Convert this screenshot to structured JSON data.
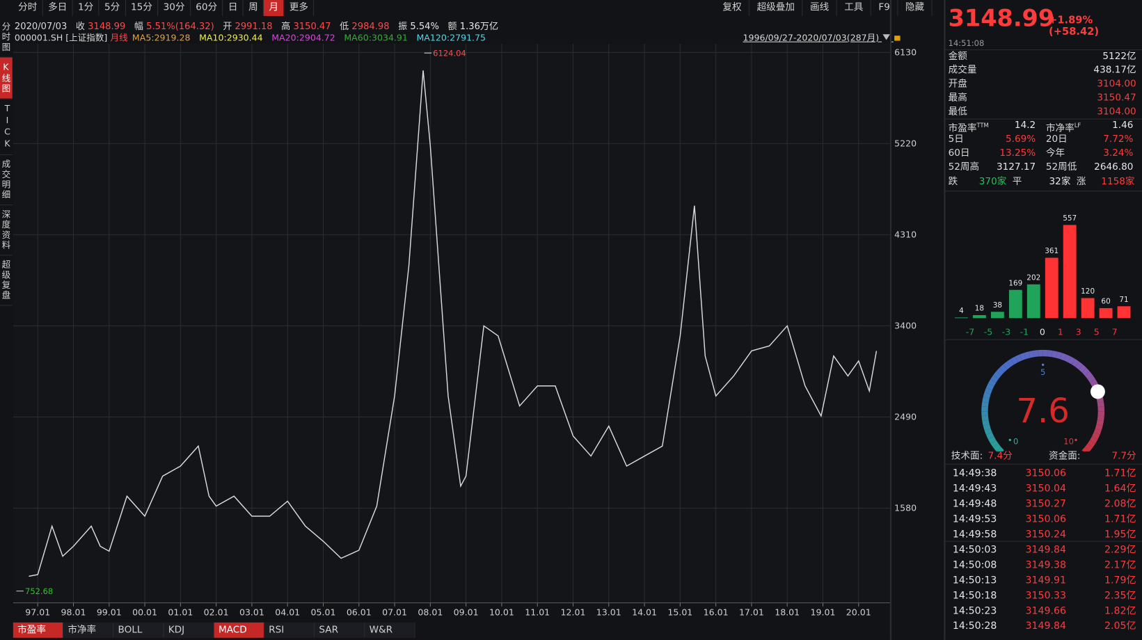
{
  "toolbar": {
    "periods": [
      "分时",
      "多日",
      "1分",
      "5分",
      "15分",
      "30分",
      "60分",
      "日",
      "周",
      "月",
      "更多"
    ],
    "active_index": 9,
    "tools": [
      "复权",
      "超级叠加",
      "画线",
      "工具",
      "F9",
      "隐藏"
    ]
  },
  "side_tabs": [
    "分时图",
    "K线图",
    "TICK",
    "成交明细",
    "深度资料",
    "超级复盘"
  ],
  "side_active": 1,
  "quote_bar": {
    "date": "2020/07/03",
    "items": [
      {
        "label": "收",
        "value": "3148.99",
        "color": "#ff4a4a"
      },
      {
        "label": "幅",
        "value": "5.51%(164.32)",
        "color": "#ff4a4a"
      },
      {
        "label": "开",
        "value": "2991.18",
        "color": "#ff4a4a"
      },
      {
        "label": "高",
        "value": "3150.47",
        "color": "#ff4a4a"
      },
      {
        "label": "低",
        "value": "2984.98",
        "color": "#ff4a4a"
      },
      {
        "label": "振",
        "value": "5.54%",
        "color": "#e6e6e6"
      },
      {
        "label": "额",
        "value": "1.36万亿",
        "color": "#e6e6e6"
      }
    ]
  },
  "legend_bar": {
    "code": "000001.SH [上证指数]",
    "period": "月线",
    "mas": [
      {
        "text": "MA5:2919.28",
        "color": "#e6a23c"
      },
      {
        "text": "MA10:2930.44",
        "color": "#f0f040"
      },
      {
        "text": "MA20:2904.72",
        "color": "#e040e0"
      },
      {
        "text": "MA60:3034.91",
        "color": "#30b030"
      },
      {
        "text": "MA120:2791.75",
        "color": "#50d8e8"
      }
    ],
    "range": "1996/09/27-2020/07/03(287月)"
  },
  "chart_data": [
    {
      "type": "line",
      "color": "#d9d9d9",
      "xlim": [
        1996.31,
        2020.88
      ],
      "ylim": [
        635,
        6217
      ],
      "grid": true,
      "xticks": [
        {
          "value": 1997,
          "label": "97.01"
        },
        {
          "value": 1998,
          "label": "98.01"
        },
        {
          "value": 1999,
          "label": "99.01"
        },
        {
          "value": 2000,
          "label": "00.01"
        },
        {
          "value": 2001,
          "label": "01.01"
        },
        {
          "value": 2002,
          "label": "02.01"
        },
        {
          "value": 2003,
          "label": "03.01"
        },
        {
          "value": 2004,
          "label": "04.01"
        },
        {
          "value": 2005,
          "label": "05.01"
        },
        {
          "value": 2006,
          "label": "06.01"
        },
        {
          "value": 2007,
          "label": "07.01"
        },
        {
          "value": 2008,
          "label": "08.01"
        },
        {
          "value": 2009,
          "label": "09.01"
        },
        {
          "value": 2010,
          "label": "10.01"
        },
        {
          "value": 2011,
          "label": "11.01"
        },
        {
          "value": 2012,
          "label": "12.01"
        },
        {
          "value": 2013,
          "label": "13.01"
        },
        {
          "value": 2014,
          "label": "14.01"
        },
        {
          "value": 2015,
          "label": "15.01"
        },
        {
          "value": 2016,
          "label": "16.01"
        },
        {
          "value": 2017,
          "label": "17.01"
        },
        {
          "value": 2018,
          "label": "18.01"
        },
        {
          "value": 2019,
          "label": "19.01"
        },
        {
          "value": 2020,
          "label": "20.01"
        }
      ],
      "yticks": [
        1580,
        2490,
        3400,
        4310,
        5220,
        6130
      ],
      "x": [
        1996.75,
        1997.0,
        1997.4,
        1997.7,
        1998.0,
        1998.5,
        1998.75,
        1999.0,
        1999.5,
        2000.0,
        2000.5,
        2001.0,
        2001.5,
        2001.8,
        2002.0,
        2002.5,
        2003.0,
        2003.5,
        2004.0,
        2004.5,
        2005.0,
        2005.5,
        2006.0,
        2006.5,
        2007.0,
        2007.4,
        2007.8,
        2008.0,
        2008.5,
        2008.85,
        2009.0,
        2009.5,
        2009.9,
        2010.5,
        2011.0,
        2011.5,
        2012.0,
        2012.5,
        2013.0,
        2013.5,
        2014.0,
        2014.5,
        2015.0,
        2015.4,
        2015.7,
        2016.0,
        2016.5,
        2017.0,
        2017.5,
        2018.0,
        2018.5,
        2018.95,
        2019.3,
        2019.7,
        2020.0,
        2020.3,
        2020.5
      ],
      "values": [
        900,
        917,
        1400,
        1100,
        1200,
        1400,
        1200,
        1150,
        1700,
        1500,
        1900,
        2000,
        2200,
        1700,
        1600,
        1700,
        1500,
        1500,
        1650,
        1400,
        1250,
        1080,
        1160,
        1600,
        2700,
        4000,
        5950,
        5200,
        2700,
        1800,
        1900,
        3400,
        3300,
        2600,
        2800,
        2800,
        2300,
        2100,
        2400,
        2000,
        2100,
        2200,
        3300,
        4600,
        3100,
        2700,
        2900,
        3150,
        3200,
        3400,
        2800,
        2500,
        3100,
        2900,
        3050,
        2750,
        3149
      ],
      "annotations": [
        {
          "x": 2007.83,
          "y": 6124.04,
          "label": "6124.04",
          "color": "#ff4a4a"
        },
        {
          "x": 1996.4,
          "y": 752.68,
          "label": "752.68",
          "color": "#30c030"
        }
      ]
    },
    {
      "type": "bar",
      "values": [
        4,
        18,
        38,
        169,
        202,
        361,
        557,
        120,
        60,
        71
      ],
      "colors": [
        "#22a35a",
        "#22a35a",
        "#22a35a",
        "#22a35a",
        "#22a35a",
        "#ff3333",
        "#ff3333",
        "#ff3333",
        "#ff3333",
        "#ff3333"
      ],
      "axis_labels": [
        {
          "text": "-7",
          "color": "#22a35a"
        },
        {
          "text": "-5",
          "color": "#22a35a"
        },
        {
          "text": "-3",
          "color": "#22a35a"
        },
        {
          "text": "-1",
          "color": "#22a35a"
        },
        {
          "text": "0",
          "color": "#e6e6e6"
        },
        {
          "text": "1",
          "color": "#ff3333"
        },
        {
          "text": "3",
          "color": "#ff3333"
        },
        {
          "text": "5",
          "color": "#ff3333"
        },
        {
          "text": "7",
          "color": "#ff3333"
        }
      ]
    }
  ],
  "indicator_tabs": [
    "市盈率",
    "市净率",
    "BOLL",
    "KDJ",
    "MACD",
    "RSI",
    "SAR",
    "W&R"
  ],
  "indicator_active": [
    0,
    4
  ],
  "panel": {
    "price": "3148.99",
    "change": "+1.89% (+58.42)",
    "time": "14:51:08",
    "stats": [
      {
        "label": "金额",
        "value": "5122亿",
        "color": "#e6e6e6"
      },
      {
        "label": "成交量",
        "value": "438.17亿",
        "color": "#e6e6e6"
      },
      {
        "label": "开盘",
        "value": "3104.00",
        "color": "#ff3b3b"
      },
      {
        "label": "最高",
        "value": "3150.47",
        "color": "#ff3b3b"
      },
      {
        "label": "最低",
        "value": "3104.00",
        "color": "#ff3b3b"
      }
    ],
    "ratios": [
      [
        {
          "label": "市盈率",
          "sup": "TTM",
          "value": "14.2",
          "color": "#e6e6e6"
        },
        {
          "label": "市净率",
          "sup": "LF",
          "value": "1.46",
          "color": "#e6e6e6"
        }
      ],
      [
        {
          "label": "5日",
          "value": "5.69%",
          "color": "#ff3b3b"
        },
        {
          "label": "20日",
          "value": "7.72%",
          "color": "#ff3b3b"
        }
      ],
      [
        {
          "label": "60日",
          "value": "13.25%",
          "color": "#ff3b3b"
        },
        {
          "label": "今年",
          "value": "3.24%",
          "color": "#ff3b3b"
        }
      ],
      [
        {
          "label": "52周高",
          "value": "3127.17",
          "color": "#e6e6e6"
        },
        {
          "label": "52周低",
          "value": "2646.80",
          "color": "#e6e6e6"
        }
      ]
    ],
    "breadth": [
      {
        "label": "跌",
        "value": "370家",
        "color": "#22c05a"
      },
      {
        "label": "平",
        "value": "32家",
        "color": "#e6e6e6"
      },
      {
        "label": "涨",
        "value": "1158家",
        "color": "#ff3b3b"
      }
    ],
    "gauge": {
      "value": 7.6,
      "ticks": [
        0,
        5,
        10
      ]
    },
    "scores": [
      {
        "label": "技术面:",
        "value": "7.4分"
      },
      {
        "label": "资金面:",
        "value": "7.7分"
      }
    ],
    "ticks": [
      {
        "time": "14:49:38",
        "price": "3150.06",
        "dir": "up",
        "amount": "1.71亿"
      },
      {
        "time": "14:49:43",
        "price": "3150.04",
        "dir": "down",
        "amount": "1.64亿"
      },
      {
        "time": "14:49:48",
        "price": "3150.27",
        "dir": "up",
        "amount": "2.08亿"
      },
      {
        "time": "14:49:53",
        "price": "3150.06",
        "dir": "down",
        "amount": "1.71亿"
      },
      {
        "time": "14:49:58",
        "price": "3150.24",
        "dir": "up",
        "amount": "1.95亿"
      },
      {
        "time": "14:50:03",
        "price": "3149.84",
        "dir": "down",
        "amount": "2.29亿"
      },
      {
        "time": "14:50:08",
        "price": "3149.38",
        "dir": "down",
        "amount": "2.17亿"
      },
      {
        "time": "14:50:13",
        "price": "3149.91",
        "dir": "up",
        "amount": "1.79亿"
      },
      {
        "time": "14:50:18",
        "price": "3150.33",
        "dir": "up",
        "amount": "2.35亿"
      },
      {
        "time": "14:50:23",
        "price": "3149.66",
        "dir": "down",
        "amount": "1.82亿"
      },
      {
        "time": "14:50:28",
        "price": "3149.84",
        "dir": "up",
        "amount": "2.05亿"
      }
    ]
  }
}
